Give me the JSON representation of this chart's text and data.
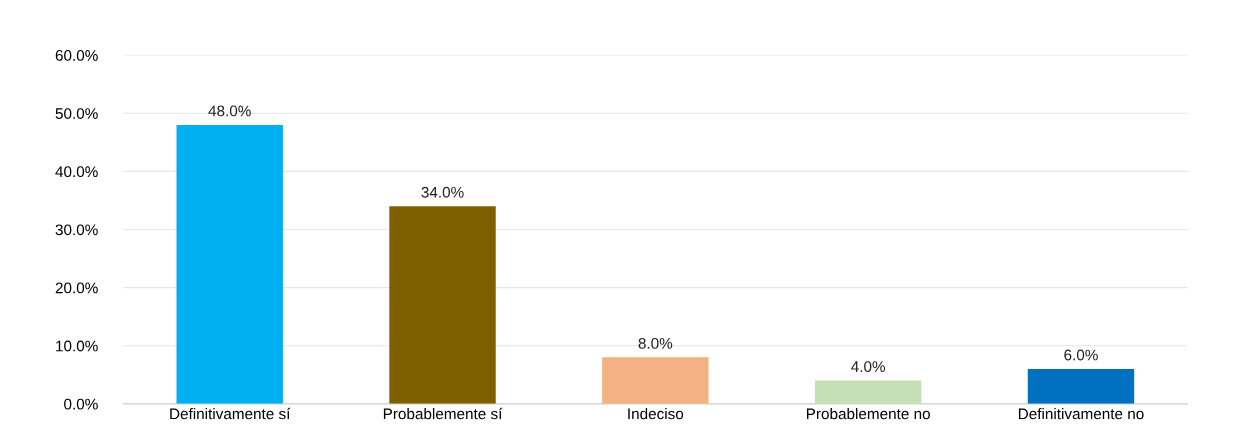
{
  "chart_data": {
    "type": "bar",
    "categories": [
      "Definitivamente sí",
      "Probablemente sí",
      "Indeciso",
      "Probablemente no",
      "Definitivamente no"
    ],
    "values": [
      48,
      34,
      8,
      4,
      6
    ],
    "colors": [
      "#00b0f0",
      "#7f6000",
      "#f4b183",
      "#c5e0b4",
      "#0070c0"
    ],
    "value_labels": [
      "48.0%",
      "34.0%",
      "8.0%",
      "4.0%",
      "6.0%"
    ],
    "ylim": [
      0,
      60
    ],
    "yticks": [
      {
        "value": 0,
        "label": "0.0%"
      },
      {
        "value": 10,
        "label": "10.0%"
      },
      {
        "value": 20,
        "label": "20.0%"
      },
      {
        "value": 30,
        "label": "30.0%"
      },
      {
        "value": 40,
        "label": "40.0%"
      },
      {
        "value": 50,
        "label": "50.0%"
      },
      {
        "value": 60,
        "label": "60.0%"
      }
    ],
    "grid": "y",
    "legend": false
  }
}
